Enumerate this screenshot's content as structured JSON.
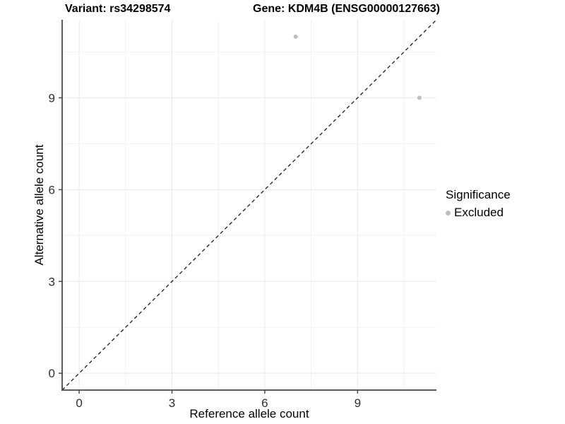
{
  "chart_data": {
    "type": "scatter",
    "titles": [
      "Variant: rs34298574",
      "Gene: KDM4B (ENSG00000127663)"
    ],
    "xlabel": "Reference allele count",
    "ylabel": "Alternative allele count",
    "xlim": [
      -0.55,
      11.55
    ],
    "ylim": [
      -0.55,
      11.55
    ],
    "x_ticks": [
      0,
      3,
      6,
      9
    ],
    "y_ticks": [
      0,
      3,
      6,
      9
    ],
    "x_minor_gridlines": [
      1.5,
      4.5,
      7.5,
      10.5
    ],
    "y_minor_gridlines": [
      1.5,
      4.5,
      7.5,
      10.5
    ],
    "grid": true,
    "legend": {
      "title": "Significance",
      "position": "right-center",
      "items": [
        {
          "label": "Excluded",
          "color": "#bebebe"
        }
      ]
    },
    "series": [
      {
        "name": "Excluded",
        "color": "#bebebe",
        "marker": "circle",
        "points": [
          [
            7,
            11
          ],
          [
            11,
            9
          ]
        ]
      }
    ],
    "reference_line": {
      "kind": "identity y=x",
      "style": "dashed",
      "color": "#1a1a1a"
    }
  },
  "colors": {
    "background": "#ffffff",
    "grid_major": "#e8e8e8",
    "grid_minor": "#f2f2f2",
    "axis_line": "#4a4a4a",
    "tick_text": "#303030",
    "point": "#bebebe"
  }
}
